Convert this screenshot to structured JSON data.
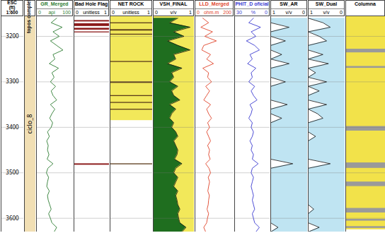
{
  "chart_data": {
    "type": "well_log",
    "y_label": [
      "ESC",
      "(ft)",
      "1:600"
    ],
    "ylim": [
      3155,
      3630
    ],
    "yticks": [
      3200,
      3300,
      3400,
      3500,
      3600
    ],
    "grid": true,
    "y": [
      3160,
      3170,
      3180,
      3190,
      3200,
      3210,
      3220,
      3230,
      3240,
      3250,
      3260,
      3270,
      3280,
      3290,
      3300,
      3310,
      3320,
      3330,
      3340,
      3350,
      3360,
      3370,
      3380,
      3390,
      3400,
      3410,
      3420,
      3430,
      3440,
      3450,
      3460,
      3470,
      3480,
      3490,
      3500,
      3510,
      3520,
      3530,
      3540,
      3550,
      3560,
      3570,
      3580,
      3590,
      3600,
      3610,
      3620,
      3630
    ],
    "tracks": [
      {
        "name": "topos complet",
        "type": "zone",
        "color": "#f1dfb4",
        "label": "ciclo_8"
      },
      {
        "name": "GR_Merged",
        "type": "line",
        "color": "#2e7d32",
        "unit": "api",
        "xlim": [
          0,
          100
        ],
        "xticks": [
          0,
          100
        ],
        "values": [
          55,
          40,
          70,
          45,
          62,
          38,
          55,
          72,
          45,
          50,
          35,
          60,
          42,
          48,
          38,
          52,
          40,
          45,
          55,
          38,
          50,
          42,
          36,
          44,
          40,
          30,
          35,
          28,
          32,
          30,
          34,
          29,
          45,
          31,
          27,
          33,
          30,
          28,
          35,
          30,
          32,
          36,
          40,
          33,
          38,
          42,
          55,
          48
        ]
      },
      {
        "name": "Bad Hole Flag",
        "type": "intervals",
        "unit": "unitless",
        "xlim": [
          0,
          1
        ],
        "xticks": [
          0,
          1
        ],
        "colors": [
          "#ffffff",
          "#8b1a1a"
        ],
        "intervals": [
          {
            "top": 3165,
            "base": 3168,
            "value": 1
          },
          {
            "top": 3172,
            "base": 3178,
            "value": 1
          },
          {
            "top": 3182,
            "base": 3186,
            "value": 1
          },
          {
            "top": 3190,
            "base": 3192,
            "value": 1
          },
          {
            "top": 3480,
            "base": 3483,
            "value": 1
          }
        ]
      },
      {
        "name": "NET ROCK",
        "type": "intervals",
        "unit": "unitless",
        "xlim": [
          0,
          1
        ],
        "xticks": [
          0,
          1
        ],
        "colors": [
          "#5a3a1a",
          "#f2e85a"
        ],
        "intervals": [
          {
            "top": 3155,
            "base": 3385,
            "value": 1
          },
          {
            "top": 3170,
            "base": 3172,
            "value": 0
          },
          {
            "top": 3185,
            "base": 3188,
            "value": 0
          },
          {
            "top": 3195,
            "base": 3197,
            "value": 0
          },
          {
            "top": 3255,
            "base": 3257,
            "value": 0
          },
          {
            "top": 3300,
            "base": 3303,
            "value": 0
          },
          {
            "top": 3330,
            "base": 3332,
            "value": 0
          },
          {
            "top": 3345,
            "base": 3347,
            "value": 0
          },
          {
            "top": 3360,
            "base": 3362,
            "value": 0
          },
          {
            "top": 3480,
            "base": 3482,
            "value": 0
          }
        ]
      },
      {
        "name": "VSH_FINAL",
        "type": "area",
        "colors": [
          "#1f6e1f",
          "#f2e85a"
        ],
        "unit": "v/v",
        "xlim": [
          0,
          1
        ],
        "xticks": [
          0,
          1
        ],
        "values": [
          0.6,
          0.4,
          0.9,
          0.5,
          0.75,
          0.35,
          0.6,
          0.9,
          0.5,
          0.55,
          0.35,
          0.7,
          0.45,
          0.5,
          0.4,
          0.6,
          0.45,
          0.5,
          0.65,
          0.4,
          0.55,
          0.45,
          0.4,
          0.5,
          0.45,
          0.55,
          0.6,
          0.5,
          0.55,
          0.6,
          0.58,
          0.52,
          0.7,
          0.55,
          0.5,
          0.6,
          0.55,
          0.5,
          0.6,
          0.55,
          0.58,
          0.6,
          0.65,
          0.6,
          0.62,
          0.65,
          0.8,
          0.7
        ]
      },
      {
        "name": "LLD_Merged",
        "type": "line",
        "color": "#e0442a",
        "unit": "ohm.m",
        "xlim": [
          0,
          200
        ],
        "xticks": [
          0,
          200
        ],
        "values": [
          40,
          70,
          30,
          90,
          50,
          110,
          45,
          35,
          80,
          60,
          95,
          40,
          70,
          65,
          85,
          55,
          75,
          60,
          45,
          80,
          60,
          70,
          85,
          65,
          75,
          60,
          70,
          80,
          65,
          75,
          70,
          78,
          55,
          72,
          80,
          68,
          75,
          70,
          66,
          74,
          70,
          68,
          62,
          70,
          64,
          60,
          45,
          55
        ]
      },
      {
        "name": "PHIT_D oficial",
        "type": "line",
        "color": "#3a3ad0",
        "unit": "%",
        "xlim": [
          30,
          0
        ],
        "xticks": [
          30,
          0
        ],
        "values": [
          14,
          18,
          8,
          16,
          12,
          20,
          13,
          9,
          17,
          15,
          19,
          12,
          16,
          15,
          18,
          13,
          16,
          14,
          11,
          17,
          15,
          16,
          18,
          15,
          16,
          14,
          15,
          17,
          15,
          16,
          14,
          15,
          10,
          15,
          16,
          14,
          15,
          16,
          15,
          14,
          15,
          14,
          13,
          15,
          14,
          13,
          9,
          12
        ]
      },
      {
        "name": "SW_AR",
        "type": "area",
        "color": "#bfe4f2",
        "unit": "v/v",
        "xlim": [
          1,
          0
        ],
        "xticks": [
          1,
          0
        ],
        "values": [
          1,
          1,
          0.5,
          1,
          1,
          0.6,
          1,
          1,
          0.7,
          1,
          0.5,
          1,
          1,
          1,
          0.6,
          1,
          1,
          1,
          1,
          0.55,
          1,
          1,
          0.7,
          1,
          1,
          1,
          1,
          1,
          1,
          1,
          1,
          1,
          0.4,
          1,
          1,
          1,
          1,
          1,
          1,
          1,
          1,
          1,
          1,
          1,
          1,
          1,
          0.8,
          1
        ]
      },
      {
        "name": "SW_Dual",
        "type": "area",
        "color": "#bfe4f2",
        "unit": "v/v",
        "xlim": [
          1,
          0
        ],
        "xticks": [
          1,
          0
        ],
        "values": [
          1,
          0.6,
          0.4,
          1,
          0.7,
          0.5,
          1,
          1,
          0.6,
          1,
          0.45,
          1,
          0.8,
          1,
          0.5,
          1,
          0.7,
          1,
          1,
          0.5,
          1,
          0.75,
          0.6,
          1,
          1,
          1,
          0.8,
          1,
          1,
          1,
          1,
          1,
          0.4,
          1,
          1,
          1,
          1,
          1,
          1,
          1,
          1,
          1,
          0.85,
          1,
          1,
          1,
          0.7,
          1
        ]
      },
      {
        "name": "Columna",
        "type": "intervals",
        "colors": [
          "#9a9a9a",
          "#f2e24a"
        ],
        "intervals": [
          {
            "top": 3155,
            "base": 3625,
            "value": 1
          },
          {
            "top": 3228,
            "base": 3236,
            "value": 0
          },
          {
            "top": 3266,
            "base": 3270,
            "value": 0
          },
          {
            "top": 3398,
            "base": 3408,
            "value": 0
          },
          {
            "top": 3478,
            "base": 3490,
            "value": 0
          },
          {
            "top": 3520,
            "base": 3530,
            "value": 0
          },
          {
            "top": 3578,
            "base": 3588,
            "value": 0
          },
          {
            "top": 3602,
            "base": 3606,
            "value": 0
          },
          {
            "top": 3618,
            "base": 3622,
            "value": 0
          }
        ]
      }
    ]
  }
}
